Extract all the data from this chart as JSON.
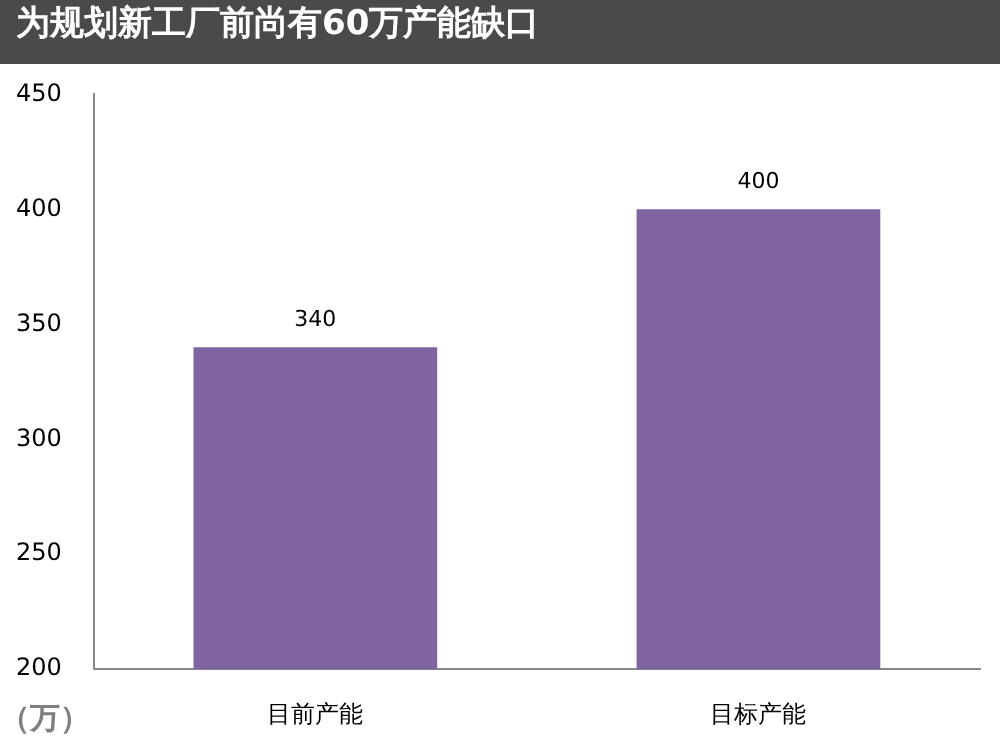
{
  "chart_data": {
    "type": "bar",
    "title": "为规划新工厂前尚有60万产能缺口",
    "ylabel": "（万）",
    "categories": [
      "目前产能",
      "目标产能"
    ],
    "values": [
      340,
      400
    ],
    "color": "#8064a2",
    "ylim": [
      200,
      450
    ],
    "yticks": [
      200,
      250,
      300,
      350,
      400,
      450
    ],
    "grid": false,
    "data_labels": true
  }
}
